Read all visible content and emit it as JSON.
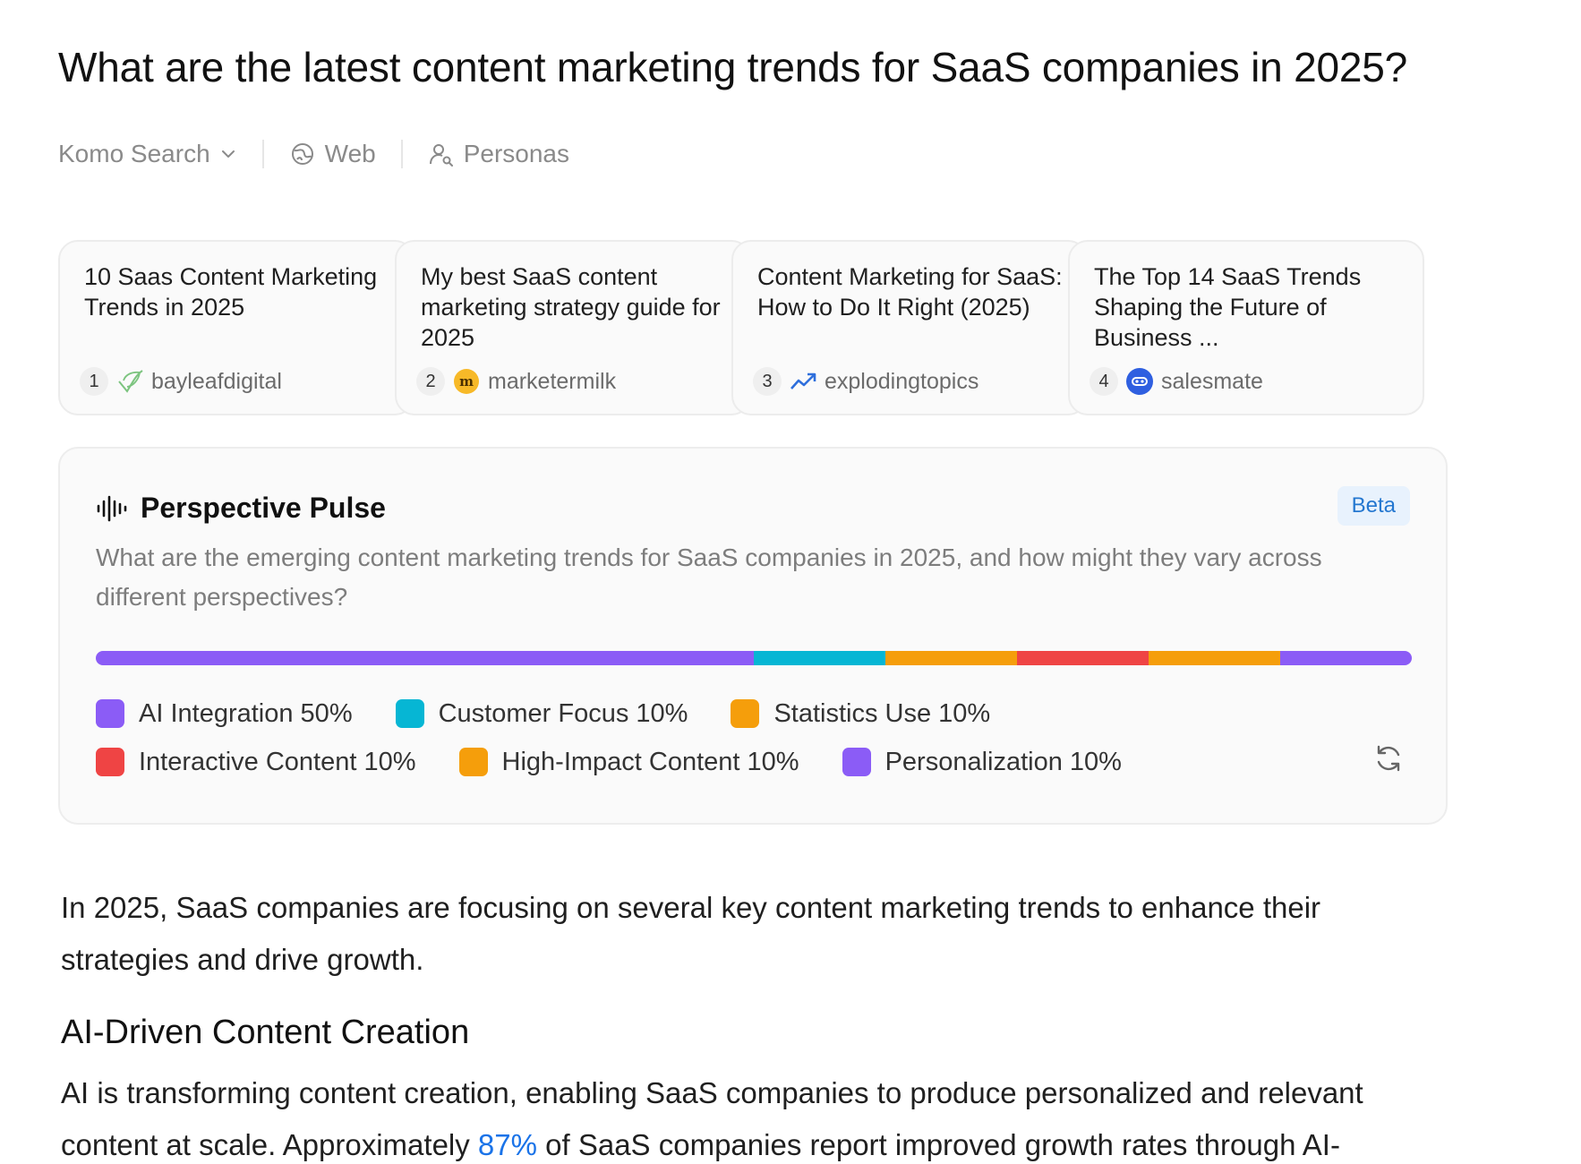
{
  "page": {
    "title": "What are the latest content marketing trends for SaaS companies in 2025?"
  },
  "toolbar": {
    "engine_label": "Komo Search",
    "engine_icon": "chevron-down-icon",
    "web_label": "Web",
    "web_icon": "globe-icon",
    "personas_label": "Personas",
    "personas_icon": "person-search-icon"
  },
  "sources": [
    {
      "title": "10 Saas Content Marketing Trends in 2025",
      "index": "1",
      "site": "bayleafdigital",
      "favicon": "leaf-icon"
    },
    {
      "title": "My best SaaS content marketing strategy guide for 2025",
      "index": "2",
      "site": "marketermilk",
      "favicon": "marketermilk-logo-icon"
    },
    {
      "title": "Content Marketing for SaaS: How to Do It Right (2025)",
      "index": "3",
      "site": "explodingtopics",
      "favicon": "trend-up-icon"
    },
    {
      "title": "The Top 14 SaaS Trends Shaping the Future of Business ...",
      "index": "4",
      "site": "salesmate",
      "favicon": "salesmate-logo-icon"
    }
  ],
  "pulse": {
    "title": "Perspective Pulse",
    "icon": "waveform-icon",
    "badge": "Beta",
    "question": "What are the emerging content marketing trends for SaaS companies in 2025, and how might they vary across different perspectives?",
    "segments": [
      {
        "label": "AI Integration 50%",
        "percent": 50,
        "color": "#8b5cf6"
      },
      {
        "label": "Customer Focus 10%",
        "percent": 10,
        "color": "#06b6d4"
      },
      {
        "label": "Statistics Use 10%",
        "percent": 10,
        "color": "#f59e0b"
      },
      {
        "label": "Interactive Content 10%",
        "percent": 10,
        "color": "#ef4444"
      },
      {
        "label": "High-Impact Content 10%",
        "percent": 10,
        "color": "#f59e0b"
      },
      {
        "label": "Personalization 10%",
        "percent": 10,
        "color": "#8b5cf6"
      }
    ],
    "refresh_icon": "refresh-icon"
  },
  "article": {
    "intro_line1": "In 2025, SaaS companies are focusing on several key content marketing trends to enhance their",
    "intro_line2": "strategies and drive growth.",
    "heading": "AI-Driven Content Creation",
    "body_line1": "AI is transforming content creation, enabling SaaS companies to produce personalized and relevant",
    "body_line2_pre": "content at scale. Approximately ",
    "body_line2_link": "87%",
    "body_line2_post": " of SaaS companies report improved growth rates through AI-"
  }
}
